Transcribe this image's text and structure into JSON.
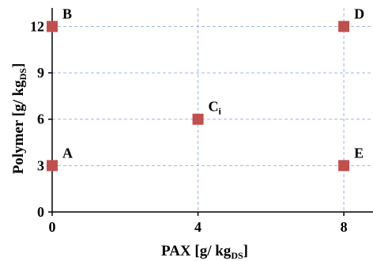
{
  "colors": {
    "marker": "#c0504d",
    "grid": "#9db7dd",
    "axis": "#000000"
  },
  "chart_data": {
    "type": "scatter",
    "title": "",
    "xlabel_main": "PAX [g/ kg",
    "xlabel_sub": "DS",
    "xlabel_end": "]",
    "ylabel_main": "Polymer [g/ kg",
    "ylabel_sub": "DS",
    "ylabel_end": "]",
    "xlim": [
      0,
      8.8
    ],
    "ylim": [
      0,
      13.2
    ],
    "xticks": [
      0,
      4,
      8
    ],
    "xtick_labels": [
      "0",
      "4",
      "8"
    ],
    "yticks": [
      0,
      3,
      6,
      9,
      12
    ],
    "ytick_labels": [
      "0",
      "3",
      "6",
      "9",
      "12"
    ],
    "grid": true,
    "grid_style": "dashed",
    "legend": false,
    "points": [
      {
        "label": "A",
        "label_sub": "",
        "x": 0,
        "y": 3
      },
      {
        "label": "B",
        "label_sub": "",
        "x": 0,
        "y": 12
      },
      {
        "label": "C",
        "label_sub": "i",
        "x": 4,
        "y": 6
      },
      {
        "label": "D",
        "label_sub": "",
        "x": 8,
        "y": 12
      },
      {
        "label": "E",
        "label_sub": "",
        "x": 8,
        "y": 3
      }
    ]
  }
}
